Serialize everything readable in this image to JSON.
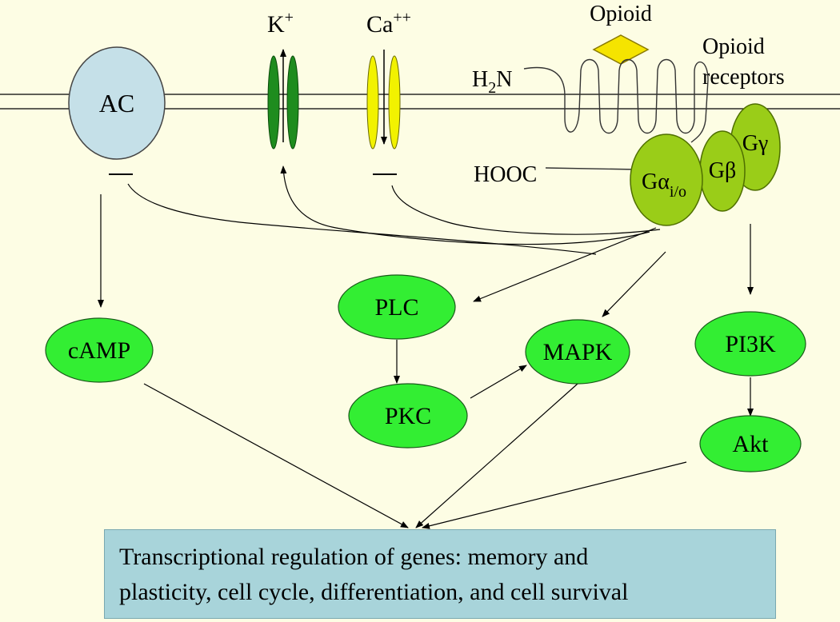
{
  "labels": {
    "ac": "AC",
    "k": "K",
    "k_sup": "+",
    "ca": "Ca",
    "ca_sup": "++",
    "opioid": "Opioid",
    "receptors_line1": "Opioid",
    "receptors_line2": "receptors",
    "h2n_h": "H",
    "h2n_sub": "2",
    "h2n_n": "N",
    "hooc": "HOOC",
    "galpha": "Gα",
    "galpha_sub": "i/o",
    "gbeta": "Gβ",
    "ggamma": "Gγ",
    "camp": "cAMP",
    "plc": "PLC",
    "pkc": "PKC",
    "mapk": "MAPK",
    "pi3k": "PI3K",
    "akt": "Akt"
  },
  "result": {
    "line1": "Transcriptional regulation of genes: memory and",
    "line2": "plasticity, cell cycle, differentiation, and cell survival"
  },
  "colors": {
    "background": "#fdfde4",
    "ac_fill": "#c5e0e8",
    "k_channel": "#1e8c1e",
    "ca_channel": "#f2f200",
    "opioid_ligand": "#f5e400",
    "g_protein": "#9acd18",
    "kinase_fill": "#33ee33",
    "result_box": "#a8d4da"
  }
}
